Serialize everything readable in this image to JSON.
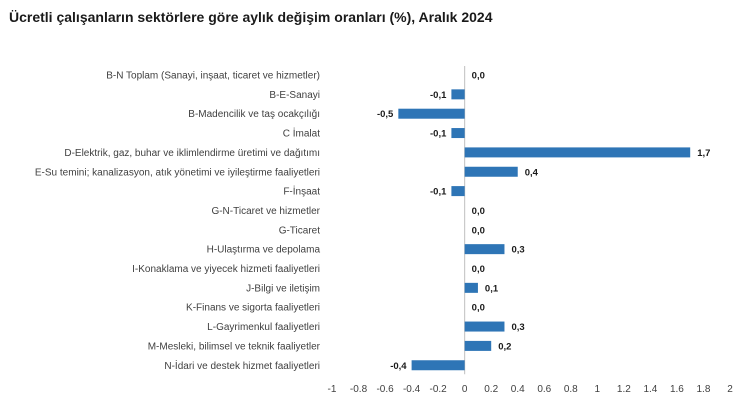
{
  "chart_data": {
    "type": "bar",
    "orientation": "horizontal",
    "title": "Ücretli çalışanların sektörlere göre aylık değişim oranları (%), Aralık 2024",
    "categories": [
      "B-N Toplam (Sanayi, inşaat, ticaret ve hizmetler)",
      "B-E-Sanayi",
      "B-Madencilik ve taş ocakçılığı",
      "C İmalat",
      "D-Elektrik, gaz, buhar ve iklimlendirme üretimi ve dağıtımı",
      "E-Su temini; kanalizasyon, atık yönetimi ve iyileştirme faaliyetleri",
      "F-İnşaat",
      "G-N-Ticaret ve hizmetler",
      "G-Ticaret",
      "H-Ulaştırma ve depolama",
      "I-Konaklama ve yiyecek hizmeti faaliyetleri",
      "J-Bilgi ve iletişim",
      "K-Finans ve sigorta faaliyetleri",
      "L-Gayrimenkul faaliyetleri",
      "M-Mesleki, bilimsel ve teknik faaliyetler",
      "N-İdari ve destek hizmet faaliyetleri"
    ],
    "values": [
      0.0,
      -0.1,
      -0.5,
      -0.1,
      1.7,
      0.4,
      -0.1,
      0.0,
      0.0,
      0.3,
      0.0,
      0.1,
      0.0,
      0.3,
      0.2,
      -0.4
    ],
    "value_labels": [
      "0,0",
      "-0,1",
      "-0,5",
      "-0,1",
      "1,7",
      "0,4",
      "-0,1",
      "0,0",
      "0,0",
      "0,3",
      "0,0",
      "0,1",
      "0,0",
      "0,3",
      "0,2",
      "-0,4"
    ],
    "xlim": [
      -1,
      2
    ],
    "xticks": [
      -1,
      -0.8,
      -0.6,
      -0.4,
      -0.2,
      0,
      0.2,
      0.4,
      0.6,
      0.8,
      1,
      1.2,
      1.4,
      1.6,
      1.8,
      2
    ],
    "xtick_labels": [
      "-1",
      "-0.8",
      "-0.6",
      "-0.4",
      "-0.2",
      "0",
      "0.2",
      "0.4",
      "0.6",
      "0.8",
      "1",
      "1.2",
      "1.4",
      "1.6",
      "1.8",
      "2"
    ],
    "bar_color": "#2e75b6",
    "grid": false,
    "legend": "none"
  }
}
